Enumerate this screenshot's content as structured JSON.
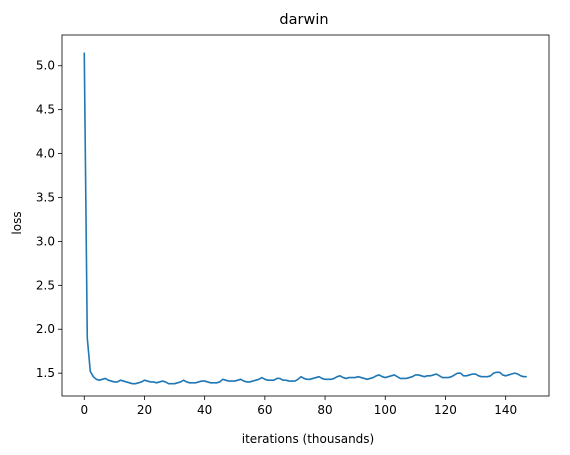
{
  "chart_data": {
    "type": "line",
    "title": "darwin",
    "xlabel": "iterations (thousands)",
    "ylabel": "loss",
    "xlim": [
      -7.4,
      154.4
    ],
    "ylim": [
      1.24,
      5.35
    ],
    "xticks": [
      0,
      20,
      40,
      60,
      80,
      100,
      120,
      140
    ],
    "yticks": [
      1.5,
      2.0,
      2.5,
      3.0,
      3.5,
      4.0,
      4.5,
      5.0
    ],
    "ytick_labels": [
      "1.5",
      "2.0",
      "2.5",
      "3.0",
      "3.5",
      "4.0",
      "4.5",
      "5.0"
    ],
    "grid": false,
    "series": [
      {
        "color": "#1f77b4",
        "x": [
          0,
          1,
          2,
          3,
          4,
          5,
          6,
          7,
          8,
          9,
          10,
          11,
          12,
          13,
          14,
          15,
          16,
          17,
          18,
          19,
          20,
          21,
          22,
          23,
          24,
          25,
          26,
          27,
          28,
          29,
          30,
          31,
          32,
          33,
          34,
          35,
          36,
          37,
          38,
          39,
          40,
          41,
          42,
          43,
          44,
          45,
          46,
          47,
          48,
          49,
          50,
          51,
          52,
          53,
          54,
          55,
          56,
          57,
          58,
          59,
          60,
          61,
          62,
          63,
          64,
          65,
          66,
          67,
          68,
          69,
          70,
          71,
          72,
          73,
          74,
          75,
          76,
          77,
          78,
          79,
          80,
          81,
          82,
          83,
          84,
          85,
          86,
          87,
          88,
          89,
          90,
          91,
          92,
          93,
          94,
          95,
          96,
          97,
          98,
          99,
          100,
          101,
          102,
          103,
          104,
          105,
          106,
          107,
          108,
          109,
          110,
          111,
          112,
          113,
          114,
          115,
          116,
          117,
          118,
          119,
          120,
          121,
          122,
          123,
          124,
          125,
          126,
          127,
          128,
          129,
          130,
          131,
          132,
          133,
          134,
          135,
          136,
          137,
          138,
          139,
          140,
          141,
          142,
          143,
          144,
          145,
          146,
          147
        ],
        "y": [
          5.15,
          1.9,
          1.52,
          1.46,
          1.43,
          1.42,
          1.43,
          1.44,
          1.42,
          1.41,
          1.4,
          1.4,
          1.42,
          1.41,
          1.4,
          1.39,
          1.38,
          1.38,
          1.39,
          1.4,
          1.42,
          1.41,
          1.4,
          1.4,
          1.39,
          1.4,
          1.41,
          1.4,
          1.38,
          1.38,
          1.38,
          1.39,
          1.4,
          1.42,
          1.4,
          1.39,
          1.39,
          1.39,
          1.4,
          1.41,
          1.41,
          1.4,
          1.39,
          1.39,
          1.39,
          1.4,
          1.43,
          1.42,
          1.41,
          1.41,
          1.41,
          1.42,
          1.43,
          1.41,
          1.4,
          1.4,
          1.41,
          1.42,
          1.43,
          1.45,
          1.43,
          1.42,
          1.42,
          1.42,
          1.44,
          1.44,
          1.42,
          1.42,
          1.41,
          1.41,
          1.41,
          1.43,
          1.46,
          1.44,
          1.43,
          1.43,
          1.44,
          1.45,
          1.46,
          1.44,
          1.43,
          1.43,
          1.43,
          1.44,
          1.46,
          1.47,
          1.45,
          1.44,
          1.45,
          1.45,
          1.45,
          1.46,
          1.45,
          1.44,
          1.43,
          1.44,
          1.45,
          1.47,
          1.48,
          1.46,
          1.45,
          1.46,
          1.47,
          1.48,
          1.46,
          1.44,
          1.44,
          1.44,
          1.45,
          1.46,
          1.48,
          1.48,
          1.47,
          1.46,
          1.47,
          1.47,
          1.48,
          1.49,
          1.47,
          1.45,
          1.45,
          1.45,
          1.46,
          1.48,
          1.5,
          1.5,
          1.47,
          1.47,
          1.48,
          1.49,
          1.49,
          1.47,
          1.46,
          1.46,
          1.46,
          1.47,
          1.5,
          1.51,
          1.51,
          1.48,
          1.47,
          1.48,
          1.49,
          1.5,
          1.49,
          1.47,
          1.46,
          1.46
        ]
      }
    ]
  }
}
